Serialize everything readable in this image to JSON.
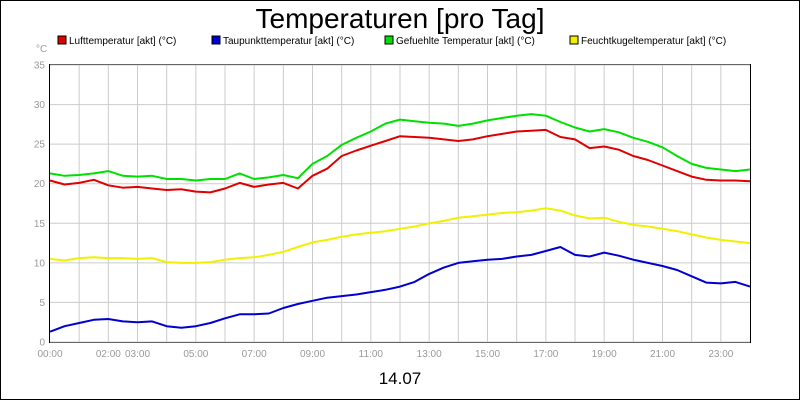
{
  "chart_data": {
    "type": "line",
    "title": "Temperaturen [pro Tag]",
    "footer": "14.07",
    "ylabel": "°C",
    "xlabel": "",
    "ylim": [
      0,
      35
    ],
    "xlim": [
      0,
      24
    ],
    "yticks": [
      0,
      5,
      10,
      15,
      20,
      25,
      30,
      35
    ],
    "xticks": [
      {
        "x": 0,
        "label": "00:00"
      },
      {
        "x": 2,
        "label": "02:00"
      },
      {
        "x": 3,
        "label": "03:00"
      },
      {
        "x": 5,
        "label": "05:00"
      },
      {
        "x": 7,
        "label": "07:00"
      },
      {
        "x": 9,
        "label": "09:00"
      },
      {
        "x": 11,
        "label": "11:00"
      },
      {
        "x": 13,
        "label": "13:00"
      },
      {
        "x": 15,
        "label": "15:00"
      },
      {
        "x": 17,
        "label": "17:00"
      },
      {
        "x": 19,
        "label": "19:00"
      },
      {
        "x": 21,
        "label": "21:00"
      },
      {
        "x": 23,
        "label": "23:00"
      }
    ],
    "grid": true,
    "legend_position": "top",
    "x": [
      0,
      0.5,
      1,
      1.5,
      2,
      2.5,
      3,
      3.5,
      4,
      4.5,
      5,
      5.5,
      6,
      6.5,
      7,
      7.5,
      8,
      8.5,
      9,
      9.5,
      10,
      10.5,
      11,
      11.5,
      12,
      12.5,
      13,
      13.5,
      14,
      14.5,
      15,
      15.5,
      16,
      16.5,
      17,
      17.5,
      18,
      18.5,
      19,
      19.5,
      20,
      20.5,
      21,
      21.5,
      22,
      22.5,
      23,
      23.5,
      24
    ],
    "series": [
      {
        "name": "Lufttemperatur [akt] (°C)",
        "color": "#e00000",
        "values": [
          20.4,
          19.9,
          20.1,
          20.5,
          19.8,
          19.5,
          19.6,
          19.4,
          19.2,
          19.3,
          19.0,
          18.9,
          19.4,
          20.1,
          19.6,
          19.9,
          20.1,
          19.4,
          21.0,
          21.9,
          23.5,
          24.2,
          24.8,
          25.4,
          26.0,
          25.9,
          25.8,
          25.6,
          25.4,
          25.6,
          26.0,
          26.3,
          26.6,
          26.7,
          26.8,
          25.9,
          25.6,
          24.5,
          24.7,
          24.3,
          23.5,
          23.0,
          22.3,
          21.6,
          20.9,
          20.5,
          20.4,
          20.4,
          20.3
        ]
      },
      {
        "name": "Taupunkttemperatur [akt] (°C)",
        "color": "#0000d0",
        "values": [
          1.3,
          2.0,
          2.4,
          2.8,
          2.9,
          2.6,
          2.5,
          2.6,
          2.0,
          1.8,
          2.0,
          2.4,
          3.0,
          3.5,
          3.5,
          3.6,
          4.3,
          4.8,
          5.2,
          5.6,
          5.8,
          6.0,
          6.3,
          6.6,
          7.0,
          7.6,
          8.6,
          9.4,
          10.0,
          10.2,
          10.4,
          10.5,
          10.8,
          11.0,
          11.5,
          12.0,
          11.0,
          10.8,
          11.3,
          10.9,
          10.4,
          10.0,
          9.6,
          9.1,
          8.3,
          7.5,
          7.4,
          7.6,
          7.0
        ]
      },
      {
        "name": "Gefuehlte Temperatur [akt] (°C)",
        "color": "#00e000",
        "values": [
          21.3,
          21.0,
          21.1,
          21.3,
          21.6,
          21.0,
          20.9,
          21.0,
          20.6,
          20.6,
          20.4,
          20.6,
          20.6,
          21.3,
          20.6,
          20.8,
          21.1,
          20.7,
          22.5,
          23.5,
          24.9,
          25.8,
          26.6,
          27.6,
          28.1,
          27.9,
          27.7,
          27.6,
          27.3,
          27.6,
          28.0,
          28.3,
          28.6,
          28.8,
          28.6,
          27.8,
          27.1,
          26.6,
          26.9,
          26.5,
          25.8,
          25.3,
          24.6,
          23.5,
          22.5,
          22.0,
          21.8,
          21.6,
          21.8
        ]
      },
      {
        "name": "Feuchtkugeltemperatur [akt] (°C)",
        "color": "#f0f000",
        "values": [
          10.5,
          10.3,
          10.6,
          10.7,
          10.6,
          10.6,
          10.5,
          10.6,
          10.1,
          10.0,
          10.0,
          10.1,
          10.4,
          10.6,
          10.7,
          11.0,
          11.4,
          12.0,
          12.6,
          12.9,
          13.3,
          13.6,
          13.8,
          14.0,
          14.3,
          14.6,
          15.0,
          15.3,
          15.7,
          15.9,
          16.1,
          16.3,
          16.4,
          16.6,
          16.9,
          16.6,
          16.0,
          15.6,
          15.7,
          15.2,
          14.8,
          14.6,
          14.3,
          14.0,
          13.6,
          13.2,
          12.9,
          12.7,
          12.5
        ]
      }
    ]
  }
}
